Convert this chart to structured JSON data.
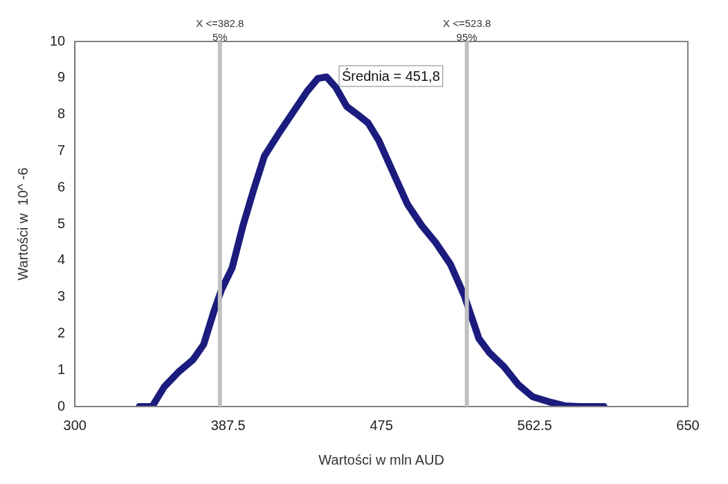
{
  "chart_data": {
    "type": "line",
    "xlabel": "Wartości w mln AUD",
    "ylabel": "Wartości w  10^ -6",
    "x": [
      336.7,
      344.1,
      351,
      359.2,
      367.4,
      373.5,
      379.6,
      383.7,
      389.8,
      396,
      402,
      408.2,
      416.4,
      424.5,
      432.7,
      438.8,
      443.7,
      449,
      455.2,
      461.3,
      467.4,
      473.5,
      481.7,
      489.9,
      498,
      506.2,
      514.4,
      522.5,
      526.6,
      530.7,
      536.8,
      545,
      553.2,
      561.3,
      571.5,
      579.7,
      587.9,
      602.2
    ],
    "series": [
      {
        "color": "#1c1c7e",
        "values": [
          0,
          0,
          0.54,
          0.95,
          1.28,
          1.7,
          2.64,
          3.2,
          3.8,
          4.96,
          5.93,
          6.86,
          7.48,
          8.06,
          8.64,
          8.99,
          9.03,
          8.74,
          8.22,
          8.0,
          7.77,
          7.29,
          6.41,
          5.54,
          4.96,
          4.48,
          3.9,
          3.02,
          2.44,
          1.86,
          1.47,
          1.09,
          0.6,
          0.27,
          0.12,
          0.02,
          0,
          0
        ]
      }
    ],
    "xlim": [
      300,
      650
    ],
    "xticks": [
      300,
      387.5,
      475,
      562.5,
      650
    ],
    "ylim": [
      0,
      10
    ],
    "yticks": [
      0,
      1,
      2,
      3,
      4,
      5,
      6,
      7,
      8,
      9,
      10
    ],
    "ref_lines": [
      {
        "axis": "x",
        "value": 382.8,
        "label": "X <=382.8\n5%",
        "color": "#c0c0c0"
      },
      {
        "axis": "x",
        "value": 523.8,
        "label": "X <=523.8\n95%",
        "color": "#c0c0c0"
      }
    ],
    "annotations": [
      "Średnia = 451,8"
    ]
  }
}
